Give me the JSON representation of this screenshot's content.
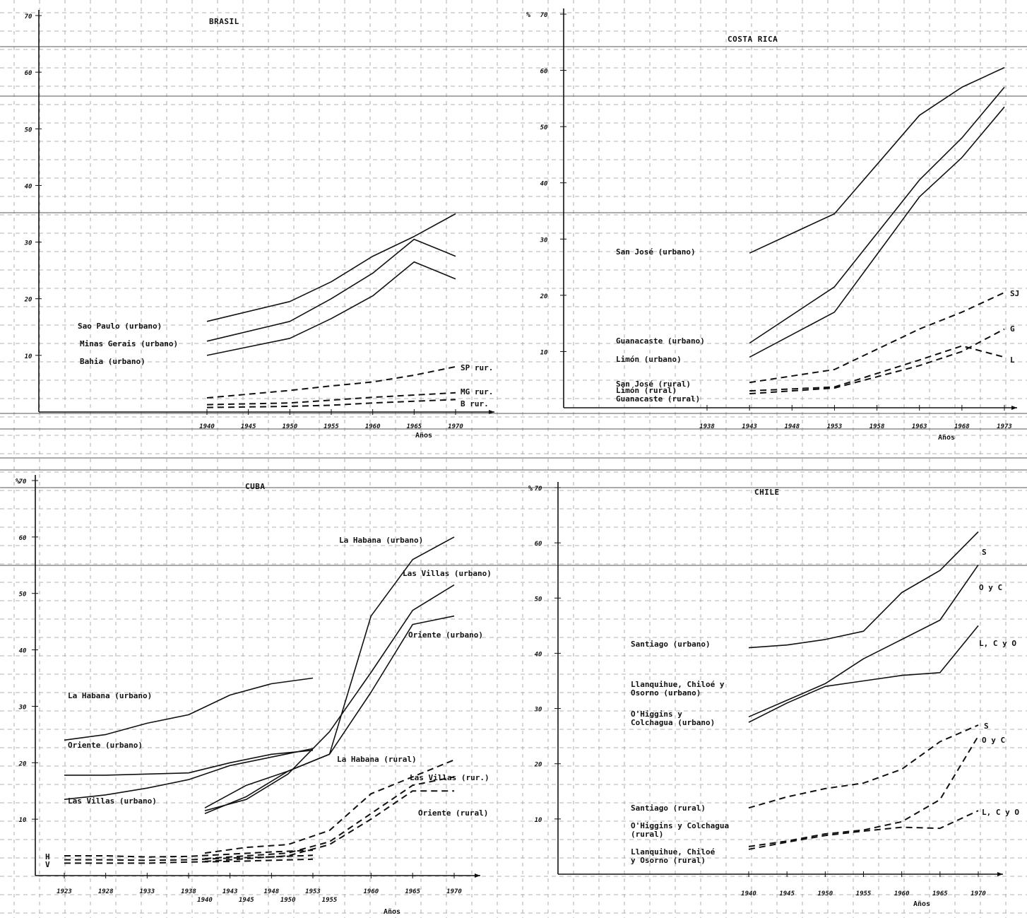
{
  "chart_data": [
    {
      "type": "line",
      "title": "BRASIL",
      "xlabel": "Años",
      "ylabel": "",
      "x_ticks": [
        "1940",
        "1945",
        "1950",
        "1955",
        "1960",
        "1965",
        "1970"
      ],
      "y_ticks": [
        "10",
        "20",
        "30",
        "40",
        "50",
        "60",
        "70"
      ],
      "xlim": [
        1940,
        1970
      ],
      "ylim": [
        0,
        70
      ],
      "series": [
        {
          "name": "Sao Paulo (urbano)",
          "style": "solid",
          "x": [
            1940,
            1950,
            1955,
            1960,
            1965,
            1970
          ],
          "y": [
            16,
            19.5,
            23,
            27.5,
            31,
            35
          ]
        },
        {
          "name": "Minas Gerais (urbano)",
          "style": "solid",
          "x": [
            1940,
            1950,
            1955,
            1960,
            1965,
            1970
          ],
          "y": [
            12.5,
            16,
            20,
            24.5,
            30.5,
            27.5
          ]
        },
        {
          "name": "Bahia (urbano)",
          "style": "solid",
          "x": [
            1940,
            1950,
            1955,
            1960,
            1965,
            1970
          ],
          "y": [
            10,
            13,
            16.5,
            20.5,
            26.5,
            23.5
          ]
        },
        {
          "name": "SP rur.",
          "style": "dashed",
          "x": [
            1940,
            1950,
            1955,
            1960,
            1965,
            1970
          ],
          "y": [
            2.5,
            3.8,
            4.6,
            5.3,
            6.5,
            8
          ]
        },
        {
          "name": "MG rur.",
          "style": "dashed",
          "x": [
            1940,
            1950,
            1955,
            1960,
            1965,
            1970
          ],
          "y": [
            1.3,
            1.6,
            2.1,
            2.6,
            3,
            3.4
          ]
        },
        {
          "name": "B rur.",
          "style": "dashed",
          "x": [
            1940,
            1950,
            1955,
            1960,
            1965,
            1970
          ],
          "y": [
            0.8,
            1,
            1.2,
            1.6,
            1.9,
            2.2
          ]
        }
      ]
    },
    {
      "type": "line",
      "title": "COSTA RICA",
      "xlabel": "Años",
      "ylabel": "%",
      "x_ticks": [
        "1938",
        "1943",
        "1948",
        "1953",
        "1958",
        "1963",
        "1968",
        "1973"
      ],
      "y_ticks": [
        "10",
        "20",
        "30",
        "40",
        "50",
        "60",
        "70"
      ],
      "xlim": [
        1938,
        1973
      ],
      "ylim": [
        0,
        70
      ],
      "series": [
        {
          "name": "San José (urbano)",
          "style": "solid",
          "x": [
            1943,
            1953,
            1963,
            1968,
            1973
          ],
          "y": [
            27.5,
            34.5,
            52,
            57,
            60.5
          ]
        },
        {
          "name": "Guanacaste (urbano)",
          "style": "solid",
          "x": [
            1943,
            1953,
            1963,
            1968,
            1973
          ],
          "y": [
            11.5,
            21.5,
            40.5,
            48,
            57
          ]
        },
        {
          "name": "Limón (urbano)",
          "style": "solid",
          "x": [
            1943,
            1953,
            1963,
            1968,
            1973
          ],
          "y": [
            9,
            17,
            37.5,
            44.5,
            53.5
          ]
        },
        {
          "name": "San José (rural)",
          "style": "dashed",
          "x": [
            1943,
            1953,
            1963,
            1968,
            1973
          ],
          "y": [
            4.5,
            6.8,
            14,
            17,
            20.5
          ]
        },
        {
          "name": "Limón (rural)",
          "style": "dashed",
          "x": [
            1943,
            1953,
            1963,
            1968,
            1973
          ],
          "y": [
            3,
            3.7,
            8.5,
            11,
            9
          ]
        },
        {
          "name": "Guanacaste (rural)",
          "style": "dashed",
          "x": [
            1943,
            1953,
            1963,
            1968,
            1973
          ],
          "y": [
            2.5,
            3.5,
            7.5,
            10,
            14
          ]
        }
      ],
      "end_labels": [
        "SJ",
        "G",
        "L"
      ]
    },
    {
      "type": "line",
      "title": "CUBA",
      "xlabel": "Años",
      "ylabel": "%",
      "x_ticks": [
        "1923",
        "1928",
        "1933",
        "1938",
        "1943",
        "1948",
        "1953",
        "1960",
        "1965",
        "1970"
      ],
      "x_ticks_lower": [
        "1940",
        "1945",
        "1950",
        "1955"
      ],
      "y_ticks": [
        "10",
        "20",
        "30",
        "40",
        "50",
        "60",
        "70"
      ],
      "xlim": [
        1923,
        1970
      ],
      "ylim": [
        0,
        70
      ],
      "series": [
        {
          "name": "La Habana (urbano)",
          "style": "solid",
          "x": [
            1923,
            1928,
            1933,
            1938,
            1943,
            1948,
            1953
          ],
          "y": [
            24,
            25,
            27,
            28.5,
            32,
            34,
            35
          ]
        },
        {
          "name": "Oriente (urbano)",
          "style": "solid",
          "x": [
            1923,
            1928,
            1933,
            1938,
            1943,
            1948,
            1953
          ],
          "y": [
            17.8,
            17.8,
            18,
            18.2,
            20,
            21.5,
            22.2
          ]
        },
        {
          "name": "Las Villas (urbano)",
          "style": "solid",
          "x": [
            1923,
            1928,
            1933,
            1938,
            1943,
            1948,
            1953
          ],
          "y": [
            13.5,
            14.3,
            15.5,
            17,
            19.5,
            21,
            22.5
          ]
        },
        {
          "name": "La Habana (urbano)",
          "style": "solid",
          "x": [
            1940,
            1945,
            1950,
            1955,
            1960,
            1965,
            1970
          ],
          "y": [
            12,
            16,
            18.5,
            21.5,
            46,
            56,
            60
          ]
        },
        {
          "name": "Las Villas (urbano)",
          "style": "solid",
          "x": [
            1940,
            1945,
            1950,
            1955,
            1960,
            1965,
            1970
          ],
          "y": [
            11.5,
            13.5,
            18,
            25.5,
            36,
            47,
            51.5
          ]
        },
        {
          "name": "Oriente (urbano)",
          "style": "solid",
          "x": [
            1940,
            1945,
            1950,
            1955,
            1960,
            1965,
            1970
          ],
          "y": [
            11,
            14,
            18.5,
            21.5,
            32.5,
            44.5,
            46
          ]
        },
        {
          "name": "La Habana (rural)",
          "style": "dashed",
          "x": [
            1940,
            1945,
            1950,
            1955,
            1960,
            1965,
            1970
          ],
          "y": [
            4,
            5,
            5.5,
            8,
            14.5,
            17.5,
            20.5
          ]
        },
        {
          "name": "Las Villas (rur.)",
          "style": "dashed",
          "x": [
            1940,
            1945,
            1950,
            1955,
            1960,
            1965,
            1970
          ],
          "y": [
            3,
            3.5,
            4,
            6,
            11,
            16,
            17.5
          ]
        },
        {
          "name": "Oriente (rural)",
          "style": "dashed",
          "x": [
            1940,
            1945,
            1950,
            1955,
            1960,
            1965,
            1970
          ],
          "y": [
            2.5,
            3,
            3.5,
            5.5,
            10,
            15,
            15
          ]
        },
        {
          "name": "H",
          "style": "dashed",
          "x": [
            1923,
            1928,
            1933,
            1938,
            1943,
            1948,
            1953
          ],
          "y": [
            3.5,
            3.5,
            3.3,
            3.4,
            3.8,
            4.2,
            4.5
          ]
        },
        {
          "name": "V",
          "style": "dashed",
          "x": [
            1923,
            1928,
            1933,
            1938,
            1943,
            1948,
            1953
          ],
          "y": [
            2.8,
            2.8,
            2.7,
            2.8,
            3.1,
            3.3,
            3.6
          ]
        },
        {
          "name": "O",
          "style": "dashed",
          "x": [
            1923,
            1928,
            1933,
            1938,
            1943,
            1948,
            1953
          ],
          "y": [
            2.2,
            2.2,
            2.2,
            2.4,
            2.5,
            2.7,
            2.9
          ]
        }
      ]
    },
    {
      "type": "line",
      "title": "CHILE",
      "xlabel": "Años",
      "ylabel": "%",
      "x_ticks": [
        "1940",
        "1945",
        "1950",
        "1955",
        "1960",
        "1965",
        "1970"
      ],
      "y_ticks": [
        "10",
        "20",
        "30",
        "40",
        "50",
        "60",
        "70"
      ],
      "xlim": [
        1940,
        1970
      ],
      "ylim": [
        0,
        70
      ],
      "series": [
        {
          "name": "Santiago (urbano)",
          "style": "solid",
          "x": [
            1940,
            1945,
            1950,
            1955,
            1960,
            1965,
            1970
          ],
          "y": [
            41,
            41.5,
            42.5,
            44,
            51,
            55,
            62
          ]
        },
        {
          "name": "Llanquihue, Chiloé y Osorno (urbano)",
          "style": "solid",
          "x": [
            1940,
            1945,
            1950,
            1955,
            1960,
            1965,
            1970
          ],
          "y": [
            27.5,
            31,
            34,
            35,
            36,
            36.5,
            45
          ]
        },
        {
          "name": "O'Higgins y Colchagua (urbano)",
          "style": "solid",
          "x": [
            1940,
            1945,
            1950,
            1955,
            1960,
            1965,
            1970
          ],
          "y": [
            28.5,
            31.5,
            34.5,
            39,
            42.5,
            46,
            56
          ]
        },
        {
          "name": "Santiago (rural)",
          "style": "dashed",
          "x": [
            1940,
            1945,
            1950,
            1955,
            1960,
            1965,
            1970
          ],
          "y": [
            12,
            14,
            15.5,
            16.5,
            19,
            24,
            27
          ]
        },
        {
          "name": "O'Higgins y Colchagua (rural)",
          "style": "dashed",
          "x": [
            1940,
            1945,
            1950,
            1955,
            1960,
            1965,
            1970
          ],
          "y": [
            5,
            6,
            7.3,
            8,
            9.5,
            13.5,
            25
          ]
        },
        {
          "name": "Llanquihue, Chiloé y Osorno (rural)",
          "style": "dashed",
          "x": [
            1940,
            1945,
            1950,
            1955,
            1960,
            1965,
            1970
          ],
          "y": [
            4.5,
            5.8,
            7,
            7.8,
            8.5,
            8.3,
            11.5
          ]
        }
      ],
      "end_labels": [
        "S",
        "O y C",
        "L, C y O",
        "S",
        "O y C",
        "L, C y O"
      ]
    }
  ]
}
